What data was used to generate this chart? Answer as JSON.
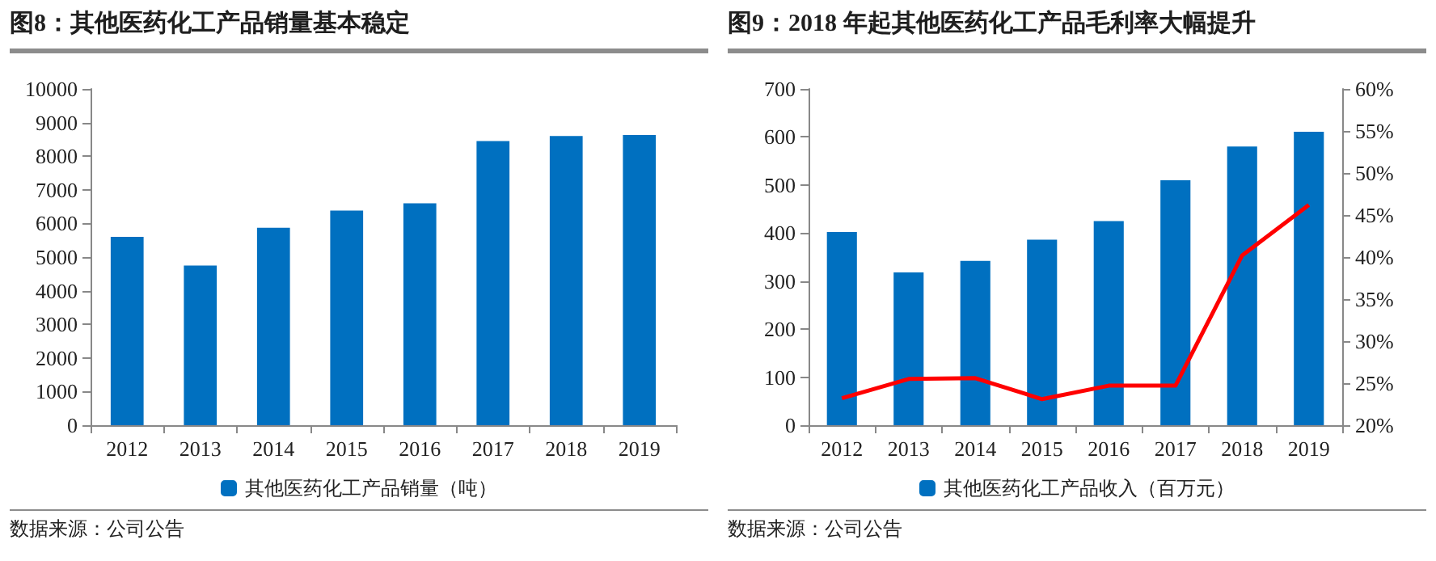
{
  "chart_data": [
    {
      "type": "bar",
      "title": "图8：其他医药化工产品销量基本稳定",
      "categories": [
        "2012",
        "2013",
        "2014",
        "2015",
        "2016",
        "2017",
        "2018",
        "2019"
      ],
      "series": [
        {
          "name": "其他医药化工产品销量（吨）",
          "color": "#0070c0",
          "values": [
            5600,
            4750,
            5870,
            6380,
            6600,
            8450,
            8600,
            8630
          ]
        }
      ],
      "ylim": [
        0,
        10000
      ],
      "yticks": [
        0,
        1000,
        2000,
        3000,
        4000,
        5000,
        6000,
        7000,
        8000,
        9000,
        10000
      ],
      "grid": false,
      "legend": "bottom",
      "annotations": [
        "数据来源：公司公告"
      ]
    },
    {
      "type": "bar",
      "title": "图9：2018 年起其他医药化工产品毛利率大幅提升",
      "categories": [
        "2012",
        "2013",
        "2014",
        "2015",
        "2016",
        "2017",
        "2018",
        "2019"
      ],
      "series": [
        {
          "name": "其他医药化工产品收入（百万元）",
          "color": "#0070c0",
          "values": [
            402,
            318,
            342,
            386,
            425,
            510,
            580,
            611
          ]
        },
        {
          "type": "line",
          "axis": "y2",
          "color": "#ff0000",
          "values": [
            23.2,
            25.5,
            25.6,
            23.1,
            24.7,
            24.7,
            40.2,
            46.2
          ]
        }
      ],
      "ylim": [
        0,
        700
      ],
      "yticks": [
        0,
        100,
        200,
        300,
        400,
        500,
        600,
        700
      ],
      "y2lim": [
        20,
        60
      ],
      "y2ticks": [
        {
          "value": 20,
          "label": "20%"
        },
        {
          "value": 25,
          "label": "25%"
        },
        {
          "value": 30,
          "label": "30%"
        },
        {
          "value": 35,
          "label": "35%"
        },
        {
          "value": 40,
          "label": "40%"
        },
        {
          "value": 45,
          "label": "45%"
        },
        {
          "value": 50,
          "label": "50%"
        },
        {
          "value": 55,
          "label": "55%"
        },
        {
          "value": 60,
          "label": "60%"
        }
      ],
      "grid": false,
      "legend": "bottom",
      "marker": "none",
      "annotations": [
        "数据来源：公司公告"
      ]
    }
  ]
}
